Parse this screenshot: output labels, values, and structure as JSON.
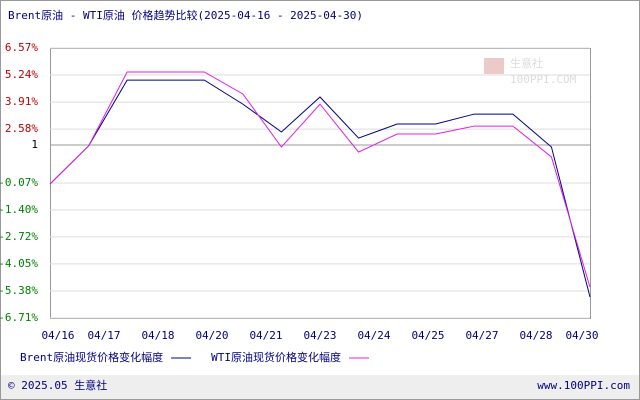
{
  "chart_data": {
    "type": "line",
    "title": "Brent原油 - WTI原油 价格趋势比较(2025-04-16 - 2025-04-30)",
    "x": [
      0,
      1,
      2,
      3,
      4,
      5,
      6,
      7,
      8,
      9,
      10,
      11,
      12,
      13,
      14
    ],
    "xlim": [
      0,
      14
    ],
    "xticks": [
      {
        "value": 0,
        "label": "04/16"
      },
      {
        "value": 1.4,
        "label": "04/17"
      },
      {
        "value": 2.8,
        "label": "04/18"
      },
      {
        "value": 4.2,
        "label": "04/20"
      },
      {
        "value": 5.6,
        "label": "04/21"
      },
      {
        "value": 7,
        "label": "04/23"
      },
      {
        "value": 8.4,
        "label": "04/24"
      },
      {
        "value": 9.8,
        "label": "04/25"
      },
      {
        "value": 11.2,
        "label": "04/27"
      },
      {
        "value": 12.6,
        "label": "04/28"
      },
      {
        "value": 14,
        "label": "04/30"
      }
    ],
    "ylim": [
      -6.71,
      6.57
    ],
    "yticks": [
      {
        "value": 6.57,
        "label": "6.57%"
      },
      {
        "value": 5.24,
        "label": "5.24%"
      },
      {
        "value": 3.91,
        "label": "3.91%"
      },
      {
        "value": 2.58,
        "label": "2.58%"
      },
      {
        "value": 1.8,
        "label": "1"
      },
      {
        "value": -0.07,
        "label": "-0.07%"
      },
      {
        "value": -1.4,
        "label": "-1.40%"
      },
      {
        "value": -2.72,
        "label": "-2.72%"
      },
      {
        "value": -4.05,
        "label": "-4.05%"
      },
      {
        "value": -5.38,
        "label": "-5.38%"
      },
      {
        "value": -6.71,
        "label": "-6.71%"
      }
    ],
    "grid": true,
    "series": [
      {
        "name": "Brent原油现货价格变化幅度",
        "color": "#00008b",
        "values": [
          -0.12,
          1.75,
          4.99,
          4.99,
          4.99,
          3.81,
          2.44,
          4.16,
          2.14,
          2.83,
          2.83,
          3.32,
          3.32,
          1.7,
          -5.68
        ]
      },
      {
        "name": "WTI原油现货价格变化幅度",
        "color": "#e020e0",
        "values": [
          -0.12,
          1.75,
          5.39,
          5.39,
          5.39,
          4.31,
          1.7,
          3.81,
          1.45,
          2.34,
          2.34,
          2.73,
          2.73,
          1.21,
          -5.19
        ]
      }
    ]
  },
  "footer": {
    "left": "© 2025.05 生意社",
    "right": "www.100PPI.com"
  },
  "watermark": {
    "name": "生意社",
    "site": "100PPI.COM"
  }
}
